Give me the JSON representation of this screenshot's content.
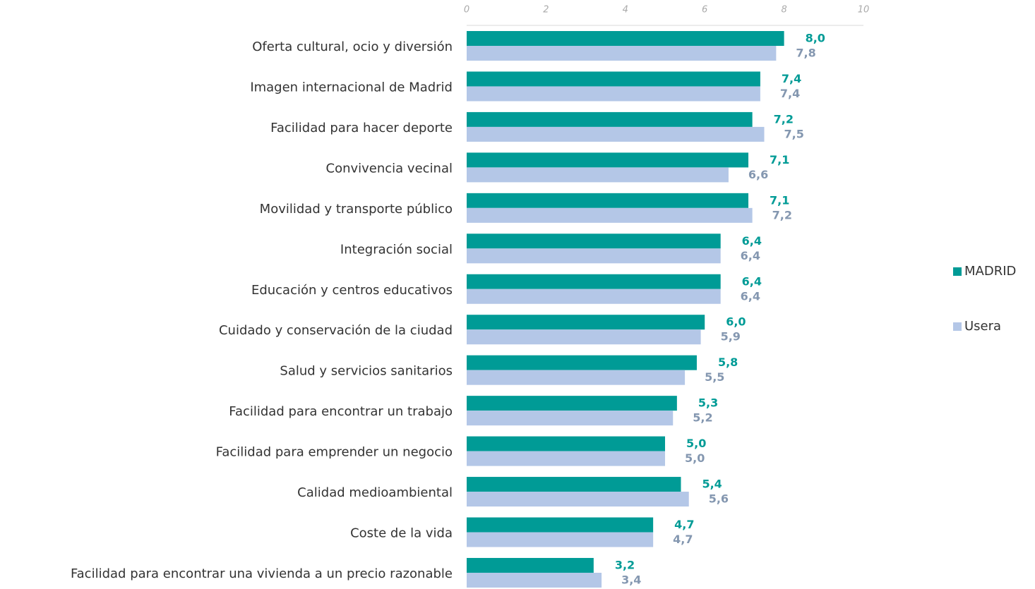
{
  "chart_data": {
    "type": "bar",
    "orientation": "horizontal",
    "categories": [
      "Oferta cultural, ocio y diversión",
      "Imagen internacional de Madrid",
      "Facilidad para hacer deporte",
      "Convivencia vecinal",
      "Movilidad y transporte público",
      "Integración social",
      "Educación y centros educativos",
      "Cuidado y conservación de la ciudad",
      "Salud y servicios sanitarios",
      "Facilidad para encontrar un trabajo",
      "Facilidad para emprender un negocio",
      "Calidad medioambiental",
      "Coste de la vida",
      "Facilidad para encontrar una vivienda a un precio razonable"
    ],
    "series": [
      {
        "name": "MADRID",
        "color": "#009b96",
        "label_color": "#009b96",
        "values": [
          8.0,
          7.4,
          7.2,
          7.1,
          7.1,
          6.4,
          6.4,
          6.0,
          5.8,
          5.3,
          5.0,
          5.4,
          4.7,
          3.2
        ],
        "value_labels": [
          "8,0",
          "7,4",
          "7,2",
          "7,1",
          "7,1",
          "6,4",
          "6,4",
          "6,0",
          "5,8",
          "5,3",
          "5,0",
          "5,4",
          "4,7",
          "3,2"
        ]
      },
      {
        "name": "Usera",
        "color": "#b4c7e7",
        "label_color": "#8497b0",
        "values": [
          7.8,
          7.4,
          7.5,
          6.6,
          7.2,
          6.4,
          6.4,
          5.9,
          5.5,
          5.2,
          5.0,
          5.6,
          4.7,
          3.4
        ],
        "value_labels": [
          "7,8",
          "7,4",
          "7,5",
          "6,6",
          "7,2",
          "6,4",
          "6,4",
          "5,9",
          "5,5",
          "5,2",
          "5,0",
          "5,6",
          "4,7",
          "3,4"
        ]
      }
    ],
    "xlim": [
      0,
      10
    ],
    "xticks": [
      0,
      2,
      4,
      6,
      8,
      10
    ],
    "legend": "right"
  }
}
